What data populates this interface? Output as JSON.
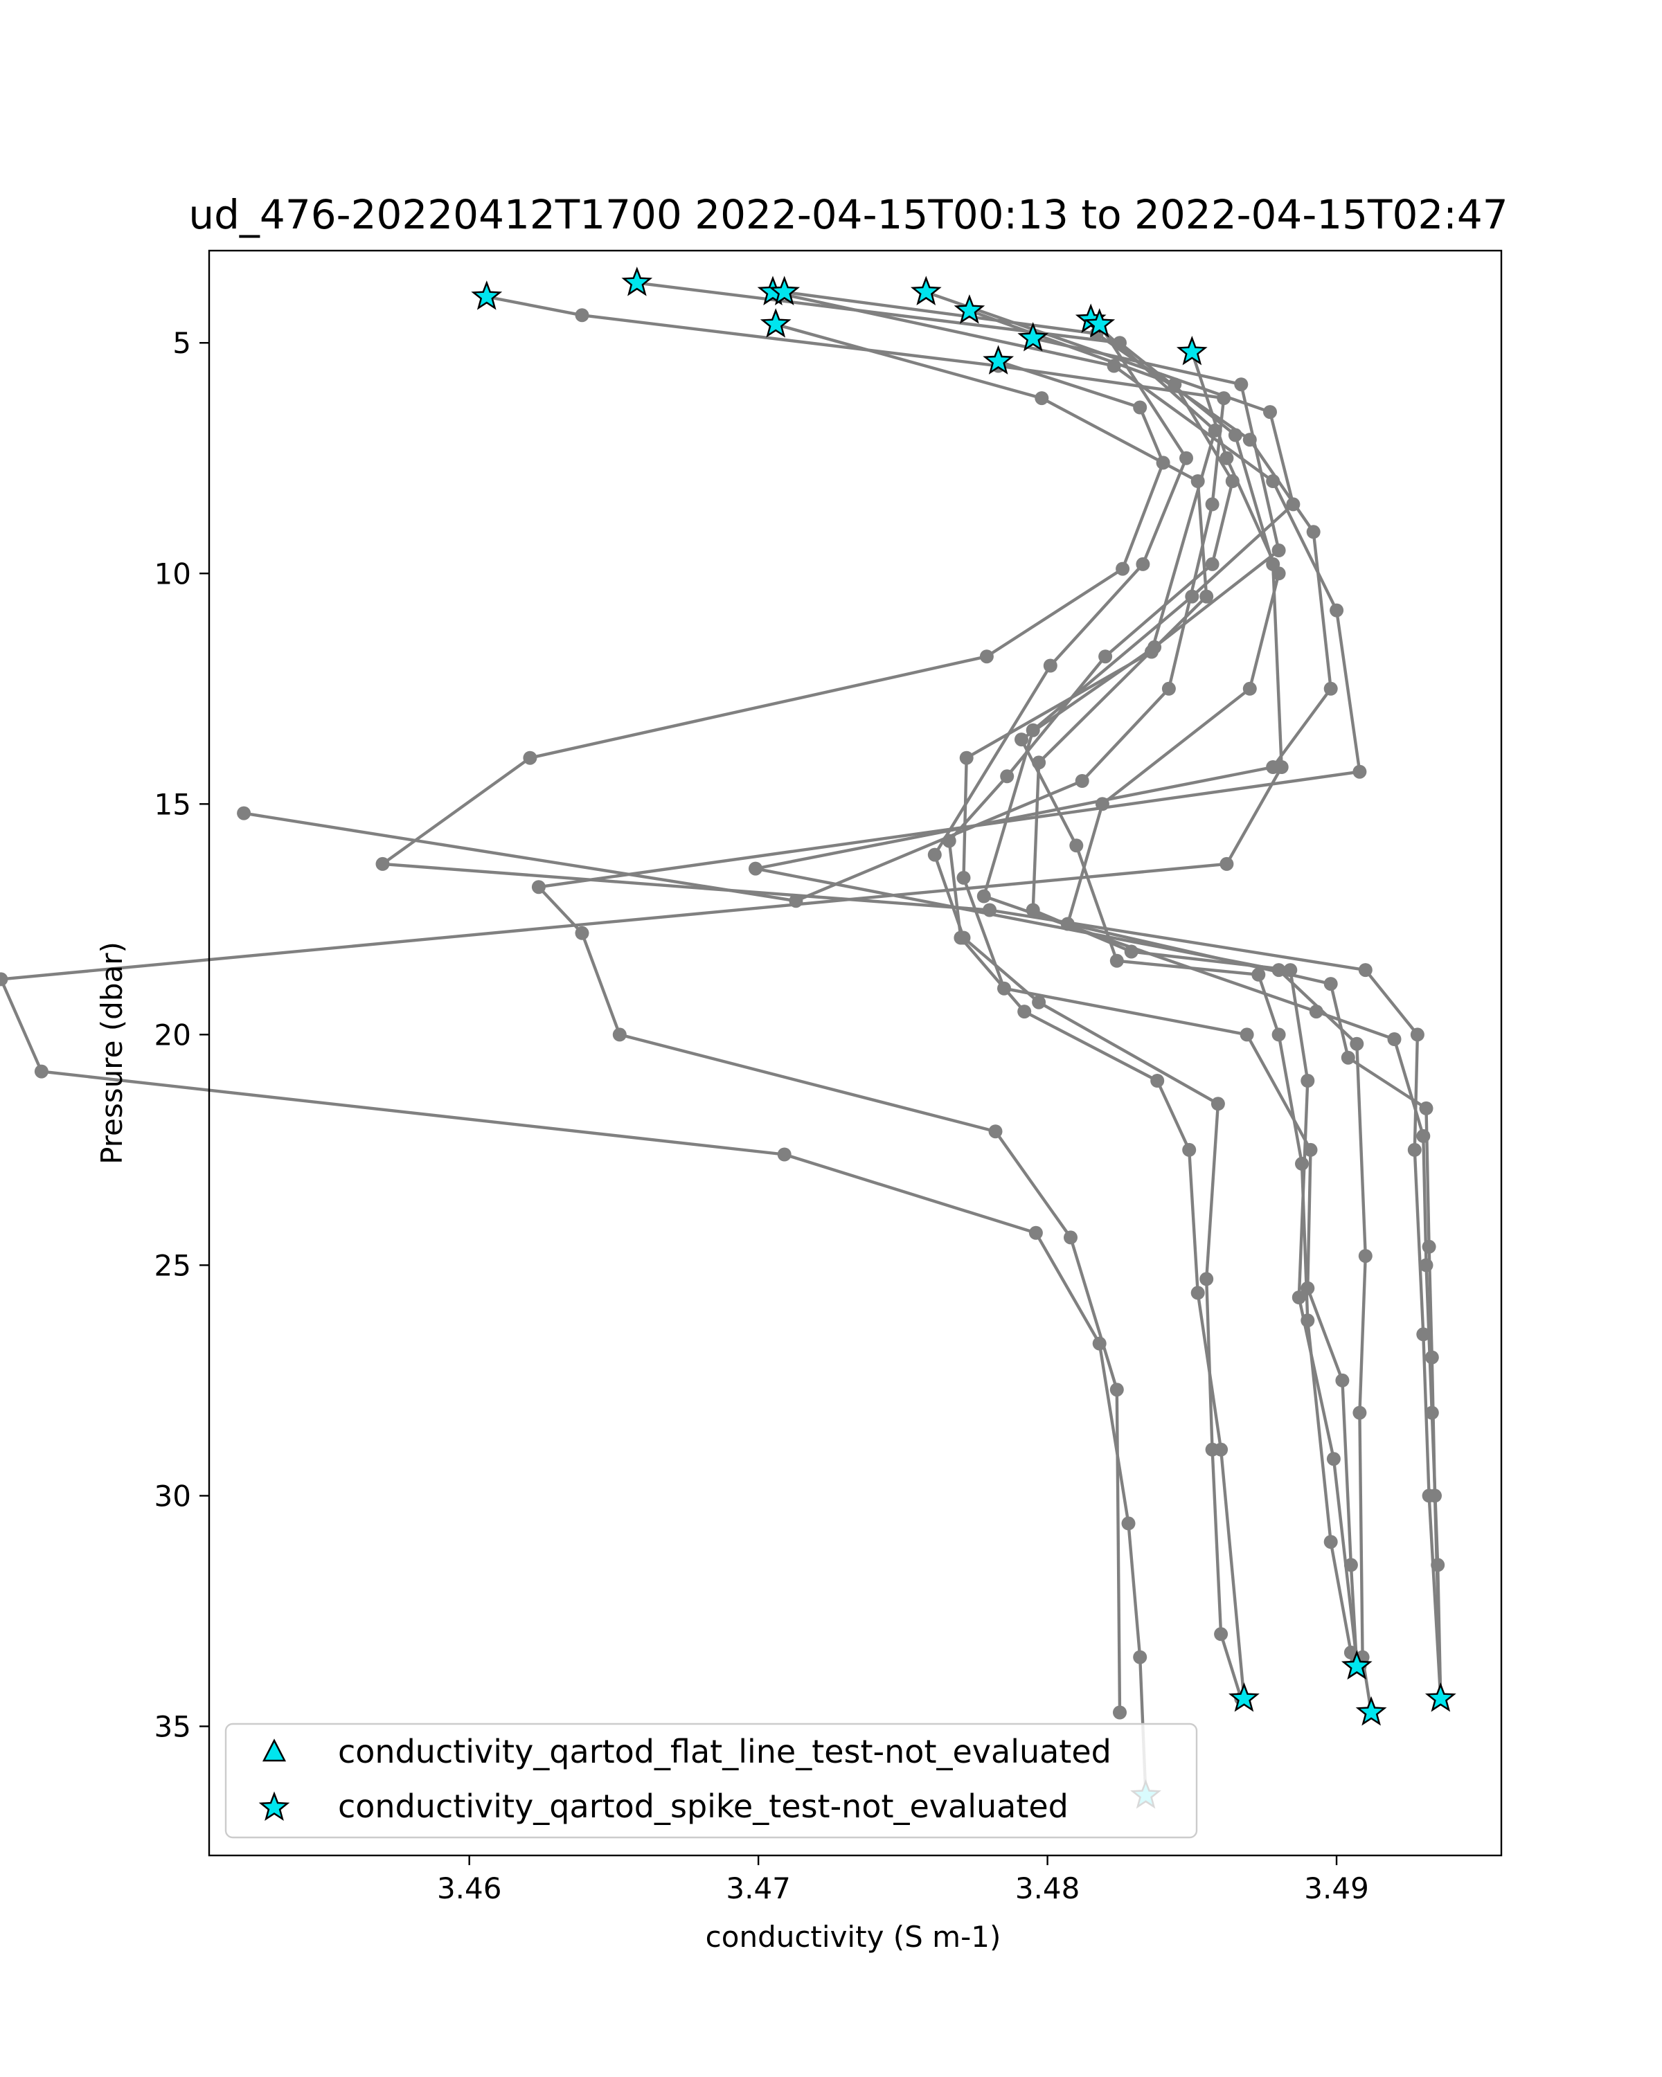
{
  "chart_data": {
    "type": "line",
    "title": "ud_476-20220412T1700 2022-04-15T00:13 to 2022-04-15T02:47",
    "xlabel": "conductivity (S m-1)",
    "ylabel": "Pressure (dbar)",
    "xlim": [
      3.451,
      3.4957
    ],
    "ylim": [
      37.8,
      3.0
    ],
    "y_inverted": true,
    "xticks": [
      3.46,
      3.47,
      3.48,
      3.49
    ],
    "xtick_labels": [
      "3.46",
      "3.47",
      "3.48",
      "3.49"
    ],
    "yticks": [
      5,
      10,
      15,
      20,
      25,
      30,
      35
    ],
    "ytick_labels": [
      "5",
      "10",
      "15",
      "20",
      "25",
      "30",
      "35"
    ],
    "grid": false,
    "line_color": "#808080",
    "marker_color": "#00e5ee",
    "legend": {
      "placement": "lower-left",
      "entries": [
        {
          "label": "conductivity_qartod_flat_line_test-not_evaluated",
          "marker": "triangle"
        },
        {
          "label": "conductivity_qartod_spike_test-not_evaluated",
          "marker": "star"
        }
      ]
    },
    "series": [
      {
        "values": [
          [
            3.4606,
            4.0
          ],
          [
            3.4639,
            4.4
          ],
          [
            3.4783,
            5.5
          ],
          [
            3.4861,
            6.2
          ],
          [
            3.4857,
            8.5
          ],
          [
            3.4842,
            12.5
          ],
          [
            3.4812,
            14.5
          ],
          [
            3.4713,
            17.1
          ],
          [
            3.4522,
            15.2
          ]
        ]
      },
      {
        "values": [
          [
            3.4658,
            3.7
          ],
          [
            3.4825,
            5.0
          ],
          [
            3.4865,
            7.0
          ],
          [
            3.4878,
            9.8
          ],
          [
            3.4881,
            14.2
          ],
          [
            3.4862,
            16.3
          ],
          [
            3.4438,
            18.8
          ],
          [
            3.4452,
            20.8
          ],
          [
            3.4709,
            22.6
          ],
          [
            3.4796,
            24.3
          ],
          [
            3.4818,
            26.7
          ],
          [
            3.4828,
            30.6
          ],
          [
            3.4832,
            33.5
          ],
          [
            3.4834,
            36.5
          ]
        ]
      },
      {
        "values": [
          [
            3.4705,
            3.9
          ],
          [
            3.4823,
            5.5
          ],
          [
            3.4878,
            8.0
          ],
          [
            3.49,
            10.8
          ],
          [
            3.4908,
            14.3
          ],
          [
            3.4624,
            16.8
          ],
          [
            3.4639,
            17.8
          ],
          [
            3.4652,
            20.0
          ],
          [
            3.4782,
            22.1
          ],
          [
            3.4808,
            24.4
          ],
          [
            3.4824,
            27.7
          ],
          [
            3.4825,
            34.7
          ]
        ]
      },
      {
        "values": [
          [
            3.4709,
            3.9
          ],
          [
            3.4817,
            4.8
          ],
          [
            3.487,
            7.1
          ],
          [
            3.4892,
            9.1
          ],
          [
            3.4898,
            12.5
          ],
          [
            3.4878,
            14.2
          ],
          [
            3.4699,
            16.4
          ],
          [
            3.488,
            18.6
          ],
          [
            3.4907,
            20.2
          ],
          [
            3.491,
            24.8
          ],
          [
            3.4908,
            28.2
          ],
          [
            3.4909,
            33.5
          ],
          [
            3.4912,
            34.7
          ]
        ]
      },
      {
        "values": [
          [
            3.4706,
            4.6
          ],
          [
            3.4798,
            6.2
          ],
          [
            3.4852,
            8.0
          ],
          [
            3.4855,
            10.5
          ],
          [
            3.4797,
            14.1
          ],
          [
            3.4795,
            17.3
          ],
          [
            3.4829,
            18.2
          ],
          [
            3.4884,
            18.6
          ],
          [
            3.489,
            21.0
          ],
          [
            3.4887,
            25.7
          ],
          [
            3.4899,
            29.2
          ],
          [
            3.4907,
            33.6
          ],
          [
            3.4908,
            33.7
          ]
        ]
      },
      {
        "values": [
          [
            3.4758,
            3.9
          ],
          [
            3.4877,
            6.5
          ],
          [
            3.4885,
            8.5
          ],
          [
            3.485,
            10.5
          ],
          [
            3.4795,
            13.4
          ],
          [
            3.4778,
            17.0
          ],
          [
            3.4893,
            19.5
          ],
          [
            3.492,
            20.1
          ],
          [
            3.493,
            22.2
          ],
          [
            3.4931,
            25.0
          ],
          [
            3.4933,
            28.2
          ],
          [
            3.4935,
            31.5
          ],
          [
            3.4936,
            34.4
          ]
        ]
      },
      {
        "values": [
          [
            3.4773,
            4.3
          ],
          [
            3.4844,
            5.9
          ],
          [
            3.4864,
            8.0
          ],
          [
            3.4857,
            9.8
          ],
          [
            3.482,
            11.8
          ],
          [
            3.4786,
            14.4
          ],
          [
            3.4766,
            15.8
          ],
          [
            3.477,
            17.9
          ],
          [
            3.4792,
            19.5
          ],
          [
            3.4838,
            21.0
          ],
          [
            3.4849,
            22.5
          ],
          [
            3.4852,
            25.6
          ],
          [
            3.486,
            29.0
          ],
          [
            3.4868,
            34.4
          ]
        ]
      },
      {
        "values": [
          [
            3.4795,
            4.9
          ],
          [
            3.4867,
            5.9
          ],
          [
            3.488,
            9.5
          ],
          [
            3.4837,
            11.6
          ],
          [
            3.4791,
            13.6
          ],
          [
            3.481,
            15.9
          ],
          [
            3.4824,
            18.4
          ],
          [
            3.4873,
            18.7
          ],
          [
            3.488,
            20.0
          ],
          [
            3.4888,
            22.8
          ],
          [
            3.489,
            26.2
          ],
          [
            3.4898,
            31.0
          ],
          [
            3.4905,
            33.4
          ]
        ]
      },
      {
        "values": [
          [
            3.4815,
            4.5
          ],
          [
            3.4858,
            6.9
          ],
          [
            3.4836,
            11.7
          ],
          [
            3.4772,
            14.0
          ],
          [
            3.4771,
            16.6
          ],
          [
            3.4785,
            19.0
          ],
          [
            3.4869,
            20.0
          ],
          [
            3.4891,
            22.5
          ],
          [
            3.489,
            25.5
          ],
          [
            3.4902,
            27.5
          ],
          [
            3.4905,
            31.5
          ],
          [
            3.4907,
            33.7
          ]
        ]
      },
      {
        "values": [
          [
            3.4818,
            4.6
          ],
          [
            3.4848,
            7.5
          ],
          [
            3.4833,
            9.8
          ],
          [
            3.4801,
            12.0
          ],
          [
            3.4761,
            16.1
          ],
          [
            3.4771,
            17.9
          ],
          [
            3.4797,
            19.3
          ],
          [
            3.4859,
            21.5
          ],
          [
            3.4855,
            25.3
          ],
          [
            3.4857,
            29.0
          ],
          [
            3.486,
            33.0
          ],
          [
            3.4867,
            34.4
          ]
        ]
      },
      {
        "values": [
          [
            3.485,
            5.2
          ],
          [
            3.4862,
            7.5
          ],
          [
            3.488,
            10.0
          ],
          [
            3.487,
            12.5
          ],
          [
            3.4819,
            15.0
          ],
          [
            3.4807,
            17.6
          ],
          [
            3.4898,
            18.9
          ],
          [
            3.4904,
            20.5
          ],
          [
            3.4931,
            21.6
          ],
          [
            3.4932,
            24.6
          ],
          [
            3.4933,
            27.0
          ],
          [
            3.4934,
            30.0
          ],
          [
            3.4936,
            34.4
          ]
        ]
      },
      {
        "values": [
          [
            3.4783,
            5.4
          ],
          [
            3.4832,
            6.4
          ],
          [
            3.484,
            7.6
          ],
          [
            3.4826,
            9.9
          ],
          [
            3.4779,
            11.8
          ],
          [
            3.4621,
            14.0
          ],
          [
            3.457,
            16.3
          ],
          [
            3.478,
            17.3
          ],
          [
            3.491,
            18.6
          ],
          [
            3.4928,
            20.0
          ],
          [
            3.4927,
            22.5
          ],
          [
            3.493,
            26.5
          ],
          [
            3.4932,
            30.0
          ],
          [
            3.4936,
            34.4
          ]
        ]
      }
    ],
    "flagged_points": [
      [
        3.4606,
        4.0
      ],
      [
        3.4658,
        3.7
      ],
      [
        3.4705,
        3.9
      ],
      [
        3.4709,
        3.9
      ],
      [
        3.4706,
        4.6
      ],
      [
        3.4758,
        3.9
      ],
      [
        3.4773,
        4.3
      ],
      [
        3.4795,
        4.9
      ],
      [
        3.4815,
        4.5
      ],
      [
        3.4818,
        4.6
      ],
      [
        3.485,
        5.2
      ],
      [
        3.4783,
        5.4
      ],
      [
        3.4834,
        36.5
      ],
      [
        3.4907,
        33.7
      ],
      [
        3.4868,
        34.4
      ],
      [
        3.4912,
        34.7
      ],
      [
        3.4936,
        34.4
      ]
    ]
  }
}
